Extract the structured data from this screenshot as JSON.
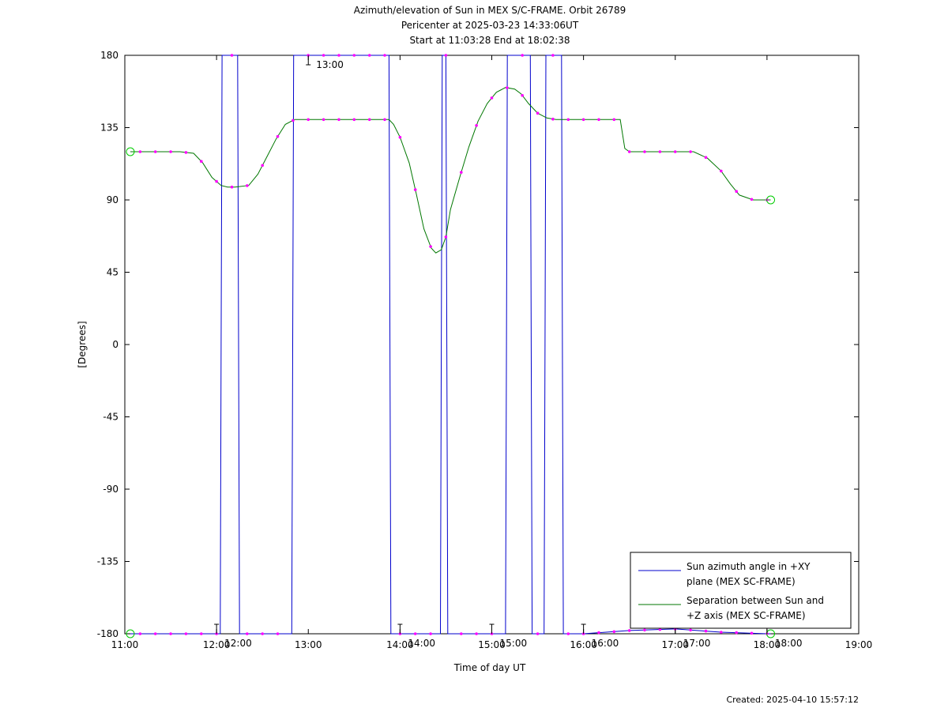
{
  "chart_data": {
    "type": "line",
    "title_lines": [
      "Azimuth/elevation of Sun in MEX S/C-FRAME.  Orbit 26789",
      "Pericenter at 2025-03-23 14:33:06UT",
      "Start at 11:03:28 End at 18:02:38"
    ],
    "xlabel": "Time of day UT",
    "ylabel": "[Degrees]",
    "xlim": [
      11.0,
      19.0
    ],
    "ylim": [
      -180,
      180
    ],
    "x_ticks": [
      {
        "value": 11,
        "label": "11:00"
      },
      {
        "value": 12,
        "label": "12:00"
      },
      {
        "value": 13,
        "label": "13:00"
      },
      {
        "value": 14,
        "label": "14:00"
      },
      {
        "value": 15,
        "label": "15:00"
      },
      {
        "value": 16,
        "label": "16:00"
      },
      {
        "value": 17,
        "label": "17:00"
      },
      {
        "value": 18,
        "label": "18:00"
      },
      {
        "value": 19,
        "label": "19:00"
      }
    ],
    "y_ticks": [
      {
        "value": 180,
        "label": "180"
      },
      {
        "value": 135,
        "label": "135"
      },
      {
        "value": 90,
        "label": "90"
      },
      {
        "value": 45,
        "label": "45"
      },
      {
        "value": 0,
        "label": "0"
      },
      {
        "value": -45,
        "label": "-45"
      },
      {
        "value": -90,
        "label": "-90"
      },
      {
        "value": -135,
        "label": "-135"
      },
      {
        "value": -180,
        "label": "-180"
      }
    ],
    "time_marks": [
      {
        "x": 12.0,
        "y": -180,
        "label": "12:00"
      },
      {
        "x": 13.0,
        "y": 180,
        "label": "13:00"
      },
      {
        "x": 14.0,
        "y": -180,
        "label": "14:00"
      },
      {
        "x": 15.0,
        "y": -180,
        "label": "15:00"
      },
      {
        "x": 16.0,
        "y": -180,
        "label": "16:00"
      },
      {
        "x": 17.0,
        "y": -180,
        "label": "17:00"
      },
      {
        "x": 18.0,
        "y": -180,
        "label": "18:00"
      }
    ],
    "legend_placement": "bottom-right",
    "series": [
      {
        "name": "Sun azimuth angle in +XY plane (MEX SC-FRAME)",
        "legend_lines": [
          "Sun azimuth angle in +XY",
          "plane (MEX SC-FRAME)"
        ],
        "color": "#0000cc",
        "x": [
          11.06,
          11.5,
          11.9,
          12.04,
          12.05,
          12.06,
          12.23,
          12.24,
          12.25,
          12.5,
          12.82,
          12.83,
          12.84,
          13.0,
          13.5,
          13.88,
          13.89,
          13.9,
          14.0,
          14.3,
          14.44,
          14.45,
          14.46,
          14.5,
          14.51,
          14.52,
          14.8,
          15.15,
          15.16,
          15.17,
          15.4,
          15.42,
          15.43,
          15.44,
          15.57,
          15.58,
          15.59,
          15.7,
          15.76,
          15.77,
          15.78,
          16.0,
          16.5,
          17.0,
          17.5,
          18.0,
          18.04
        ],
        "y": [
          -180,
          -180,
          -180,
          -180,
          0,
          180,
          180,
          0,
          -180,
          -180,
          -180,
          0,
          180,
          180,
          180,
          180,
          0,
          -180,
          -180,
          -180,
          -180,
          0,
          180,
          180,
          0,
          -180,
          -180,
          -180,
          0,
          180,
          180,
          180,
          0,
          -180,
          -180,
          0,
          180,
          180,
          180,
          0,
          -180,
          -180,
          -178,
          -177,
          -179,
          -180,
          -180
        ]
      },
      {
        "name": "Separation between Sun and +Z axis (MEX SC-FRAME)",
        "legend_lines": [
          "Separation between Sun and",
          "+Z axis (MEX SC-FRAME)"
        ],
        "color": "#007700",
        "x": [
          11.06,
          11.2,
          11.4,
          11.6,
          11.75,
          11.85,
          11.95,
          12.05,
          12.12,
          12.2,
          12.35,
          12.45,
          12.55,
          12.65,
          12.75,
          12.85,
          12.95,
          13.1,
          13.3,
          13.5,
          13.7,
          13.88,
          13.93,
          14.0,
          14.1,
          14.18,
          14.26,
          14.34,
          14.39,
          14.45,
          14.5,
          14.55,
          14.65,
          14.75,
          14.85,
          14.95,
          15.05,
          15.15,
          15.25,
          15.32,
          15.4,
          15.5,
          15.6,
          15.7,
          15.8,
          15.9,
          16.0,
          16.2,
          16.4,
          16.45,
          16.5,
          16.7,
          16.9,
          17.1,
          17.2,
          17.35,
          17.5,
          17.6,
          17.7,
          17.85,
          18.04
        ],
        "y": [
          120,
          120,
          120,
          120,
          119,
          113,
          104,
          99,
          98,
          98,
          99,
          106,
          117,
          128,
          137,
          140,
          140,
          140,
          140,
          140,
          140,
          140,
          137,
          129,
          113,
          93,
          72,
          60,
          57,
          59,
          67,
          84,
          104,
          123,
          139,
          150,
          157,
          160,
          159,
          156,
          150,
          144,
          141,
          140,
          140,
          140,
          140,
          140,
          140,
          122,
          120,
          120,
          120,
          120,
          120,
          116,
          108,
          100,
          93,
          90,
          90
        ]
      }
    ]
  },
  "footer": {
    "created": "Created: 2025-04-10 15:57:12"
  }
}
